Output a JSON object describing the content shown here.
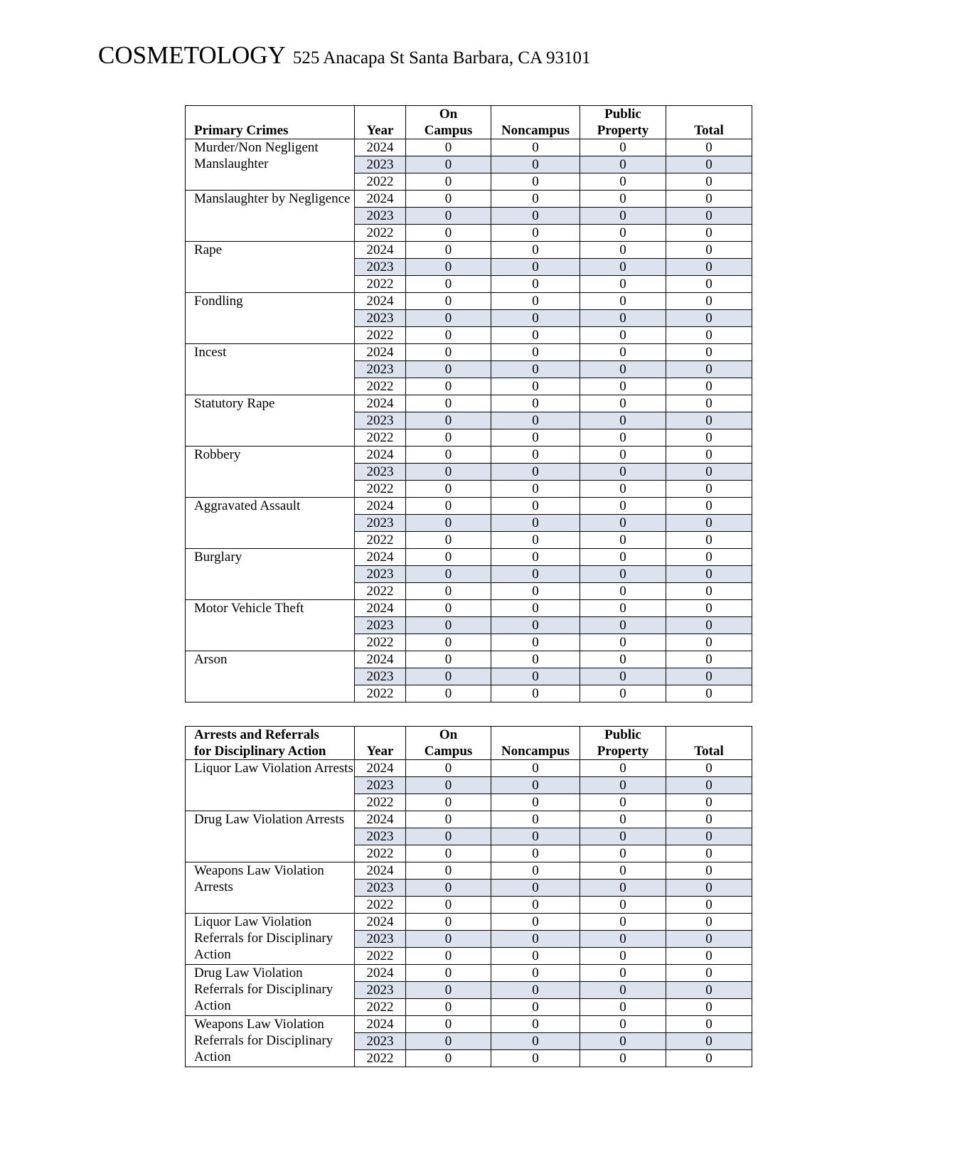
{
  "header": {
    "title": "COSMETOLOGY",
    "address": "525 Anacapa St Santa Barbara, CA 93101"
  },
  "shade_color": "#dce3ef",
  "tables": [
    {
      "columns": [
        "Primary Crimes",
        "Year",
        "On\nCampus",
        "Noncampus",
        "Public\nProperty",
        "Total"
      ],
      "groups": [
        {
          "name": "Murder/Non Negligent Manslaughter",
          "rows": [
            [
              "2024",
              "0",
              "0",
              "0",
              "0"
            ],
            [
              "2023",
              "0",
              "0",
              "0",
              "0"
            ],
            [
              "2022",
              "0",
              "0",
              "0",
              "0"
            ]
          ]
        },
        {
          "name": "Manslaughter by Negligence",
          "rows": [
            [
              "2024",
              "0",
              "0",
              "0",
              "0"
            ],
            [
              "2023",
              "0",
              "0",
              "0",
              "0"
            ],
            [
              "2022",
              "0",
              "0",
              "0",
              "0"
            ]
          ]
        },
        {
          "name": "Rape",
          "rows": [
            [
              "2024",
              "0",
              "0",
              "0",
              "0"
            ],
            [
              "2023",
              "0",
              "0",
              "0",
              "0"
            ],
            [
              "2022",
              "0",
              "0",
              "0",
              "0"
            ]
          ]
        },
        {
          "name": "Fondling",
          "rows": [
            [
              "2024",
              "0",
              "0",
              "0",
              "0"
            ],
            [
              "2023",
              "0",
              "0",
              "0",
              "0"
            ],
            [
              "2022",
              "0",
              "0",
              "0",
              "0"
            ]
          ]
        },
        {
          "name": "Incest",
          "rows": [
            [
              "2024",
              "0",
              "0",
              "0",
              "0"
            ],
            [
              "2023",
              "0",
              "0",
              "0",
              "0"
            ],
            [
              "2022",
              "0",
              "0",
              "0",
              "0"
            ]
          ]
        },
        {
          "name": "Statutory Rape",
          "rows": [
            [
              "2024",
              "0",
              "0",
              "0",
              "0"
            ],
            [
              "2023",
              "0",
              "0",
              "0",
              "0"
            ],
            [
              "2022",
              "0",
              "0",
              "0",
              "0"
            ]
          ]
        },
        {
          "name": "Robbery",
          "rows": [
            [
              "2024",
              "0",
              "0",
              "0",
              "0"
            ],
            [
              "2023",
              "0",
              "0",
              "0",
              "0"
            ],
            [
              "2022",
              "0",
              "0",
              "0",
              "0"
            ]
          ]
        },
        {
          "name": "Aggravated Assault",
          "rows": [
            [
              "2024",
              "0",
              "0",
              "0",
              "0"
            ],
            [
              "2023",
              "0",
              "0",
              "0",
              "0"
            ],
            [
              "2022",
              "0",
              "0",
              "0",
              "0"
            ]
          ]
        },
        {
          "name": "Burglary",
          "rows": [
            [
              "2024",
              "0",
              "0",
              "0",
              "0"
            ],
            [
              "2023",
              "0",
              "0",
              "0",
              "0"
            ],
            [
              "2022",
              "0",
              "0",
              "0",
              "0"
            ]
          ]
        },
        {
          "name": "Motor Vehicle Theft",
          "rows": [
            [
              "2024",
              "0",
              "0",
              "0",
              "0"
            ],
            [
              "2023",
              "0",
              "0",
              "0",
              "0"
            ],
            [
              "2022",
              "0",
              "0",
              "0",
              "0"
            ]
          ]
        },
        {
          "name": "Arson",
          "rows": [
            [
              "2024",
              "0",
              "0",
              "0",
              "0"
            ],
            [
              "2023",
              "0",
              "0",
              "0",
              "0"
            ],
            [
              "2022",
              "0",
              "0",
              "0",
              "0"
            ]
          ]
        }
      ]
    },
    {
      "columns": [
        "Arrests and Referrals\nfor Disciplinary Action",
        "Year",
        "On\nCampus",
        "Noncampus",
        "Public\nProperty",
        "Total"
      ],
      "groups": [
        {
          "name": "Liquor Law Violation Arrests",
          "rows": [
            [
              "2024",
              "0",
              "0",
              "0",
              "0"
            ],
            [
              "2023",
              "0",
              "0",
              "0",
              "0"
            ],
            [
              "2022",
              "0",
              "0",
              "0",
              "0"
            ]
          ]
        },
        {
          "name": "Drug Law Violation Arrests",
          "rows": [
            [
              "2024",
              "0",
              "0",
              "0",
              "0"
            ],
            [
              "2023",
              "0",
              "0",
              "0",
              "0"
            ],
            [
              "2022",
              "0",
              "0",
              "0",
              "0"
            ]
          ]
        },
        {
          "name": "Weapons Law Violation Arrests",
          "rows": [
            [
              "2024",
              "0",
              "0",
              "0",
              "0"
            ],
            [
              "2023",
              "0",
              "0",
              "0",
              "0"
            ],
            [
              "2022",
              "0",
              "0",
              "0",
              "0"
            ]
          ]
        },
        {
          "name": "Liquor Law Violation Referrals for Disciplinary Action",
          "rows": [
            [
              "2024",
              "0",
              "0",
              "0",
              "0"
            ],
            [
              "2023",
              "0",
              "0",
              "0",
              "0"
            ],
            [
              "2022",
              "0",
              "0",
              "0",
              "0"
            ]
          ]
        },
        {
          "name": "Drug Law Violation Referrals for Disciplinary Action",
          "rows": [
            [
              "2024",
              "0",
              "0",
              "0",
              "0"
            ],
            [
              "2023",
              "0",
              "0",
              "0",
              "0"
            ],
            [
              "2022",
              "0",
              "0",
              "0",
              "0"
            ]
          ]
        },
        {
          "name": "Weapons Law Violation Referrals for Disciplinary Action",
          "rows": [
            [
              "2024",
              "0",
              "0",
              "0",
              "0"
            ],
            [
              "2023",
              "0",
              "0",
              "0",
              "0"
            ],
            [
              "2022",
              "0",
              "0",
              "0",
              "0"
            ]
          ]
        }
      ]
    }
  ]
}
